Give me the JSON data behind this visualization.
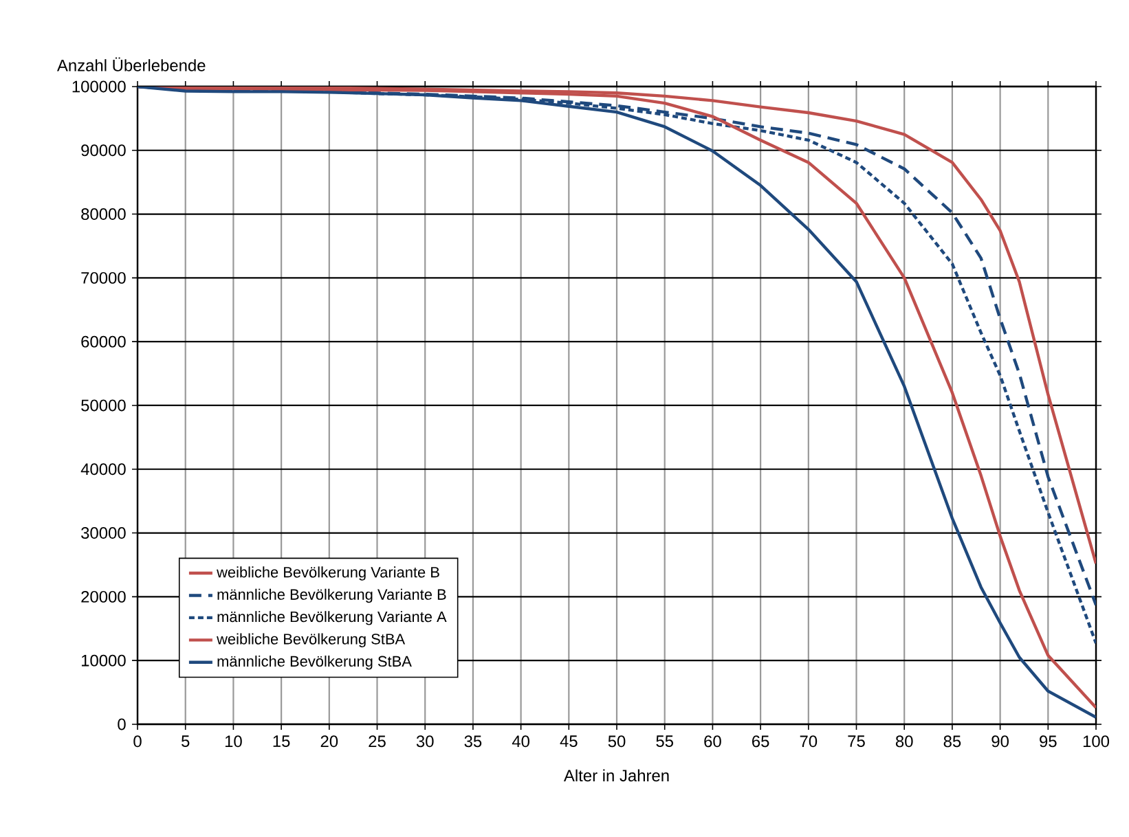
{
  "chart_data": {
    "type": "line",
    "xlabel": "Alter in Jahren",
    "ylabel": "Anzahl Überlebende",
    "x": [
      0,
      5,
      10,
      15,
      20,
      25,
      30,
      35,
      40,
      45,
      50,
      55,
      60,
      65,
      70,
      75,
      80,
      85,
      88,
      90,
      92,
      95,
      100
    ],
    "xlim": [
      0,
      100
    ],
    "xticks": [
      0,
      5,
      10,
      15,
      20,
      25,
      30,
      35,
      40,
      45,
      50,
      55,
      60,
      65,
      70,
      75,
      80,
      85,
      90,
      95,
      100
    ],
    "ylim": [
      0,
      100000
    ],
    "yticks": [
      0,
      10000,
      20000,
      30000,
      40000,
      50000,
      60000,
      70000,
      80000,
      90000,
      100000
    ],
    "grid": true,
    "legend": "bottom left",
    "marker": "none",
    "series": [
      {
        "name": "weibliche Bevölkerung Variante B",
        "color": "#c0504d",
        "line_style": "solid",
        "values": [
          100000,
          99900,
          99900,
          99800,
          99800,
          99700,
          99600,
          99450,
          99300,
          99200,
          99000,
          98500,
          97800,
          96800,
          95900,
          94600,
          92500,
          88100,
          82300,
          77400,
          69400,
          51700,
          25200
        ]
      },
      {
        "name": "männliche Bevölkerung Variante B",
        "color": "#1f497d",
        "line_style": "dashed",
        "values": [
          100000,
          99500,
          99400,
          99300,
          99200,
          99000,
          98800,
          98500,
          98200,
          97600,
          97000,
          96000,
          95000,
          93700,
          92700,
          90900,
          87100,
          80200,
          73100,
          63600,
          55000,
          38800,
          18700
        ]
      },
      {
        "name": "männliche Bevölkerung Variante A",
        "color": "#1f497d",
        "line_style": "dotted",
        "values": [
          100000,
          99500,
          99400,
          99300,
          99200,
          98900,
          98700,
          98400,
          98000,
          97400,
          96600,
          95600,
          94200,
          93100,
          91600,
          88100,
          81700,
          72200,
          61400,
          54700,
          46000,
          33200,
          12700
        ]
      },
      {
        "name": "weibliche Bevölkerung StBA",
        "color": "#c0504d",
        "line_style": "solid",
        "values": [
          100000,
          99700,
          99700,
          99600,
          99500,
          99450,
          99400,
          99200,
          99000,
          98800,
          98500,
          97400,
          95300,
          91600,
          88100,
          81700,
          70000,
          52000,
          39000,
          29500,
          21000,
          10800,
          2600
        ]
      },
      {
        "name": "männliche Bevölkerung StBA",
        "color": "#1f497d",
        "line_style": "solid",
        "values": [
          100000,
          99300,
          99200,
          99200,
          99100,
          98900,
          98700,
          98200,
          97800,
          96900,
          96000,
          93700,
          89900,
          84500,
          77600,
          69400,
          53000,
          32300,
          21500,
          15900,
          10500,
          5200,
          1100
        ]
      }
    ]
  }
}
